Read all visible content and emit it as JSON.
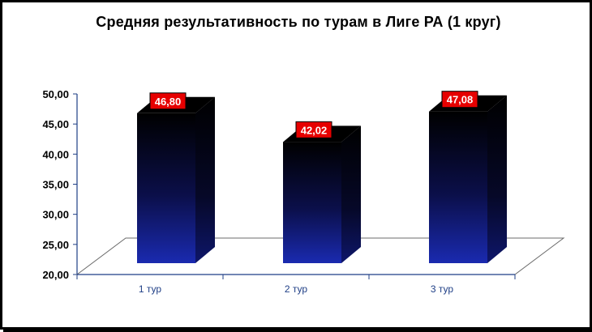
{
  "chart_data": {
    "type": "bar",
    "title": "Средняя результативность по турам в Лиге РА (1 круг)",
    "categories": [
      "1 тур",
      "2 тур",
      "3 тур"
    ],
    "values": [
      46.8,
      42.02,
      47.08
    ],
    "data_labels": [
      "46,80",
      "42,02",
      "47,08"
    ],
    "yticks": [
      "20,00",
      "25,00",
      "30,00",
      "35,00",
      "40,00",
      "45,00",
      "50,00"
    ],
    "ylim": [
      20,
      50
    ],
    "xlabel": "",
    "ylabel": "",
    "grid": false,
    "legend": "none",
    "style": "3d-column",
    "colors": {
      "bar_top": "#000000",
      "bar_bottom": "#1a2ab0",
      "label_bg": "#e60000",
      "axis": "#1f3f86"
    }
  }
}
